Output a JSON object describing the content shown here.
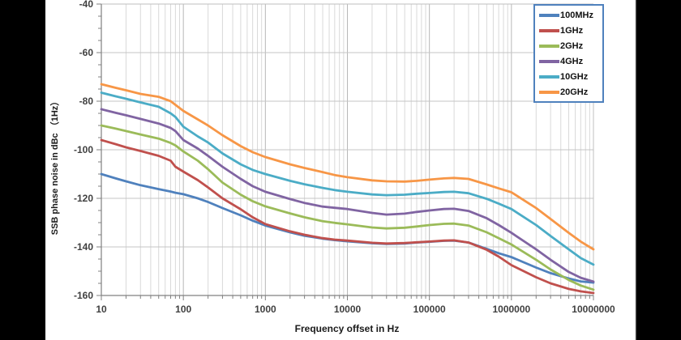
{
  "colors": {
    "page_background": "#000000",
    "panel_background": "#FFFFFF",
    "grid_minor": "#D9D9D9",
    "grid_major": "#B7B7B7",
    "grid_horizontal": "#C4C4C4",
    "axis_spine": "#808080",
    "plot_border": "#BFBFBF",
    "tick_label": "#404040",
    "legend_border": "#4F81BD"
  },
  "chart_data": {
    "type": "line",
    "title": "",
    "xlabel": "Frequency offset in Hz",
    "ylabel": "SSB phase noise in dBc （1Hz）",
    "x_scale": "log",
    "xlim": [
      10,
      10000000
    ],
    "ylim": [
      -160,
      -40
    ],
    "grid": true,
    "legend_position": "top-right",
    "y_ticks": [
      -40,
      -60,
      -80,
      -100,
      -120,
      -140,
      -160
    ],
    "x_ticks": [
      10,
      100,
      1000,
      10000,
      100000,
      1000000,
      10000000
    ],
    "x_tick_labels": [
      "10",
      "100",
      "1000",
      "10000",
      "100000",
      "1000000",
      "10000000"
    ],
    "x": [
      10,
      15,
      20,
      30,
      50,
      70,
      80,
      100,
      150,
      200,
      300,
      500,
      700,
      1000,
      2000,
      3000,
      5000,
      7000,
      10000,
      20000,
      30000,
      50000,
      70000,
      100000,
      150000,
      200000,
      300000,
      500000,
      700000,
      1000000,
      2000000,
      3000000,
      5000000,
      7000000,
      10000000
    ],
    "series": [
      {
        "name": "100MHz",
        "color": "#4F81BD",
        "values": [
          -110,
          -111.8,
          -113,
          -114.6,
          -116.2,
          -117.2,
          -117.7,
          -118.3,
          -120,
          -121.5,
          -124,
          -127,
          -129.2,
          -131.2,
          -134,
          -135.4,
          -136.6,
          -137.2,
          -137.7,
          -138.5,
          -138.8,
          -138.6,
          -138.2,
          -137.9,
          -137.5,
          -137.4,
          -138.2,
          -140.8,
          -142.6,
          -144.2,
          -148.5,
          -150.8,
          -153,
          -154.2,
          -154.7
        ]
      },
      {
        "name": "1GHz",
        "color": "#C0504D",
        "values": [
          -96,
          -97.7,
          -99,
          -100.5,
          -102.5,
          -104.5,
          -107,
          -109,
          -112.5,
          -115.5,
          -120,
          -124.5,
          -127.8,
          -130.6,
          -133.6,
          -135,
          -136.4,
          -137,
          -137.4,
          -138.3,
          -138.6,
          -138.4,
          -138.1,
          -137.8,
          -137.4,
          -137.3,
          -138.2,
          -141.2,
          -144,
          -147.5,
          -152.5,
          -155,
          -157.3,
          -158.3,
          -159
        ]
      },
      {
        "name": "2GHz",
        "color": "#9BBB59",
        "values": [
          -90,
          -91.3,
          -92.3,
          -93.7,
          -95.4,
          -97.2,
          -98.2,
          -100.7,
          -104.5,
          -108,
          -113.5,
          -118.5,
          -121.2,
          -123.3,
          -126.2,
          -127.8,
          -129.4,
          -130.1,
          -130.7,
          -132,
          -132.4,
          -132.1,
          -131.6,
          -131,
          -130.5,
          -130.4,
          -131.2,
          -134,
          -136.4,
          -139,
          -145.3,
          -149.3,
          -153.6,
          -155.9,
          -157.6
        ]
      },
      {
        "name": "4GHz",
        "color": "#8064A2",
        "values": [
          -83.3,
          -84.8,
          -85.8,
          -87.3,
          -89.2,
          -91,
          -92.3,
          -96,
          -99.5,
          -102.5,
          -107,
          -112,
          -115,
          -117.3,
          -120.3,
          -121.9,
          -123.4,
          -123.9,
          -124.4,
          -126,
          -126.7,
          -126.3,
          -125.6,
          -125,
          -124.4,
          -124.3,
          -125.2,
          -128.2,
          -131,
          -134.2,
          -141,
          -145.3,
          -150.3,
          -152.7,
          -154.3
        ]
      },
      {
        "name": "10GHz",
        "color": "#4BACC6",
        "values": [
          -76.5,
          -78,
          -79,
          -80.5,
          -82.3,
          -85,
          -86.5,
          -90.5,
          -94.5,
          -97,
          -101.5,
          -106,
          -108.3,
          -110,
          -112.8,
          -114.2,
          -115.7,
          -116.6,
          -117.3,
          -118.4,
          -118.7,
          -118.5,
          -118.1,
          -117.8,
          -117.4,
          -117.3,
          -117.9,
          -120.2,
          -122.2,
          -124.4,
          -131,
          -135.5,
          -141,
          -144.6,
          -147.3
        ]
      },
      {
        "name": "20GHz",
        "color": "#F79646",
        "values": [
          -73,
          -74.5,
          -75.5,
          -77,
          -78.2,
          -80,
          -81.5,
          -84,
          -87.5,
          -90,
          -94,
          -98.5,
          -101,
          -103,
          -106,
          -107.5,
          -109.2,
          -110.4,
          -111.3,
          -112.6,
          -113,
          -113.1,
          -112.8,
          -112.3,
          -111.8,
          -111.6,
          -112,
          -114.3,
          -115.9,
          -117.5,
          -124,
          -128.5,
          -134.2,
          -137.8,
          -141
        ]
      }
    ]
  }
}
